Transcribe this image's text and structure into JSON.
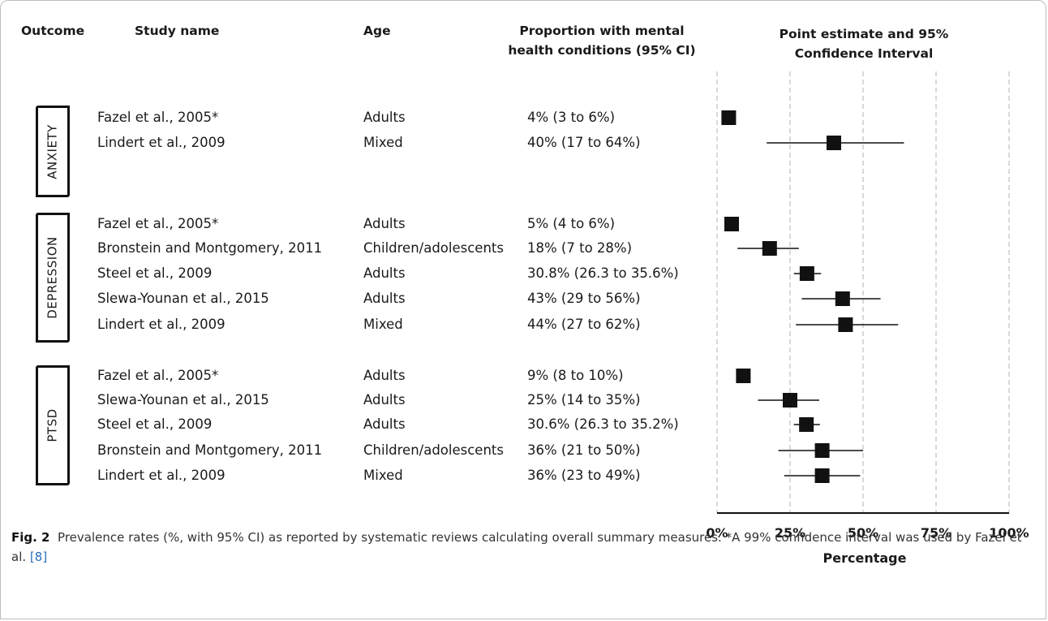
{
  "headers": {
    "outcome": "Outcome",
    "study": "Study name",
    "age": "Age",
    "proportion_line1": "Proportion with mental",
    "proportion_line2": "health conditions (95% CI)",
    "estimate_line1": "Point estimate and 95%",
    "estimate_line2": "Confidence Interval"
  },
  "outcomes": [
    {
      "label": "ANXIETY"
    },
    {
      "label": "DEPRESSION"
    },
    {
      "label": "PTSD"
    }
  ],
  "rows": [
    {
      "study": "Fazel et al., 2005*",
      "age": "Adults",
      "proportion": "4% (3 to 6%)"
    },
    {
      "study": "Lindert et al., 2009",
      "age": "Mixed",
      "proportion": "40% (17 to 64%)"
    },
    {
      "study": "Fazel et al., 2005*",
      "age": "Adults",
      "proportion": "5% (4 to 6%)"
    },
    {
      "study": "Bronstein and Montgomery, 2011",
      "age": "Children/adolescents",
      "proportion": "18% (7 to 28%)"
    },
    {
      "study": "Steel et al., 2009",
      "age": "Adults",
      "proportion": "30.8% (26.3 to 35.6%)"
    },
    {
      "study": "Slewa-Younan et al., 2015",
      "age": "Adults",
      "proportion": "43% (29 to 56%)"
    },
    {
      "study": "Lindert et al., 2009",
      "age": "Mixed",
      "proportion": "44% (27 to 62%)"
    },
    {
      "study": "Fazel et al., 2005*",
      "age": "Adults",
      "proportion": "9% (8 to 10%)"
    },
    {
      "study": "Slewa-Younan et al., 2015",
      "age": "Adults",
      "proportion": "25% (14 to 35%)"
    },
    {
      "study": "Steel et al., 2009",
      "age": "Adults",
      "proportion": "30.6% (26.3 to 35.2%)"
    },
    {
      "study": "Bronstein and Montgomery, 2011",
      "age": "Children/adolescents",
      "proportion": "36% (21 to 50%)"
    },
    {
      "study": "Lindert et al., 2009",
      "age": "Mixed",
      "proportion": "36% (23 to 49%)"
    }
  ],
  "chart_data": {
    "type": "scatter",
    "subtype": "forest-plot",
    "xlabel": "Percentage",
    "xlim": [
      0,
      100
    ],
    "x_ticks": [
      "0%",
      "25%",
      "50%",
      "75%",
      "100%"
    ],
    "x_tick_values": [
      0,
      25,
      50,
      75,
      100
    ],
    "grid": "vertical dashed",
    "series": [
      {
        "name": "ANXIETY",
        "points": [
          {
            "study": "Fazel et al., 2005*",
            "estimate": 4,
            "lower": 3,
            "upper": 6
          },
          {
            "study": "Lindert et al., 2009",
            "estimate": 40,
            "lower": 17,
            "upper": 64
          }
        ]
      },
      {
        "name": "DEPRESSION",
        "points": [
          {
            "study": "Fazel et al., 2005*",
            "estimate": 5,
            "lower": 4,
            "upper": 6
          },
          {
            "study": "Bronstein and Montgomery, 2011",
            "estimate": 18,
            "lower": 7,
            "upper": 28
          },
          {
            "study": "Steel et al., 2009",
            "estimate": 30.8,
            "lower": 26.3,
            "upper": 35.6
          },
          {
            "study": "Slewa-Younan et al., 2015",
            "estimate": 43,
            "lower": 29,
            "upper": 56
          },
          {
            "study": "Lindert et al., 2009",
            "estimate": 44,
            "lower": 27,
            "upper": 62
          }
        ]
      },
      {
        "name": "PTSD",
        "points": [
          {
            "study": "Fazel et al., 2005*",
            "estimate": 9,
            "lower": 8,
            "upper": 10
          },
          {
            "study": "Slewa-Younan et al., 2015",
            "estimate": 25,
            "lower": 14,
            "upper": 35
          },
          {
            "study": "Steel et al., 2009",
            "estimate": 30.6,
            "lower": 26.3,
            "upper": 35.2
          },
          {
            "study": "Bronstein and Montgomery, 2011",
            "estimate": 36,
            "lower": 21,
            "upper": 50
          },
          {
            "study": "Lindert et al., 2009",
            "estimate": 36,
            "lower": 23,
            "upper": 49
          }
        ]
      }
    ]
  },
  "caption": {
    "label": "Fig. 2",
    "text": "Prevalence rates (%, with 95% CI) as reported by systematic reviews calculating overall summary measures. *A 99% confidence interval was used by Fazel et al.",
    "ref": "[8]"
  },
  "colors": {
    "marker": "#111111",
    "grid": "#bfbfbf",
    "ref_link": "#2a6ebb"
  }
}
